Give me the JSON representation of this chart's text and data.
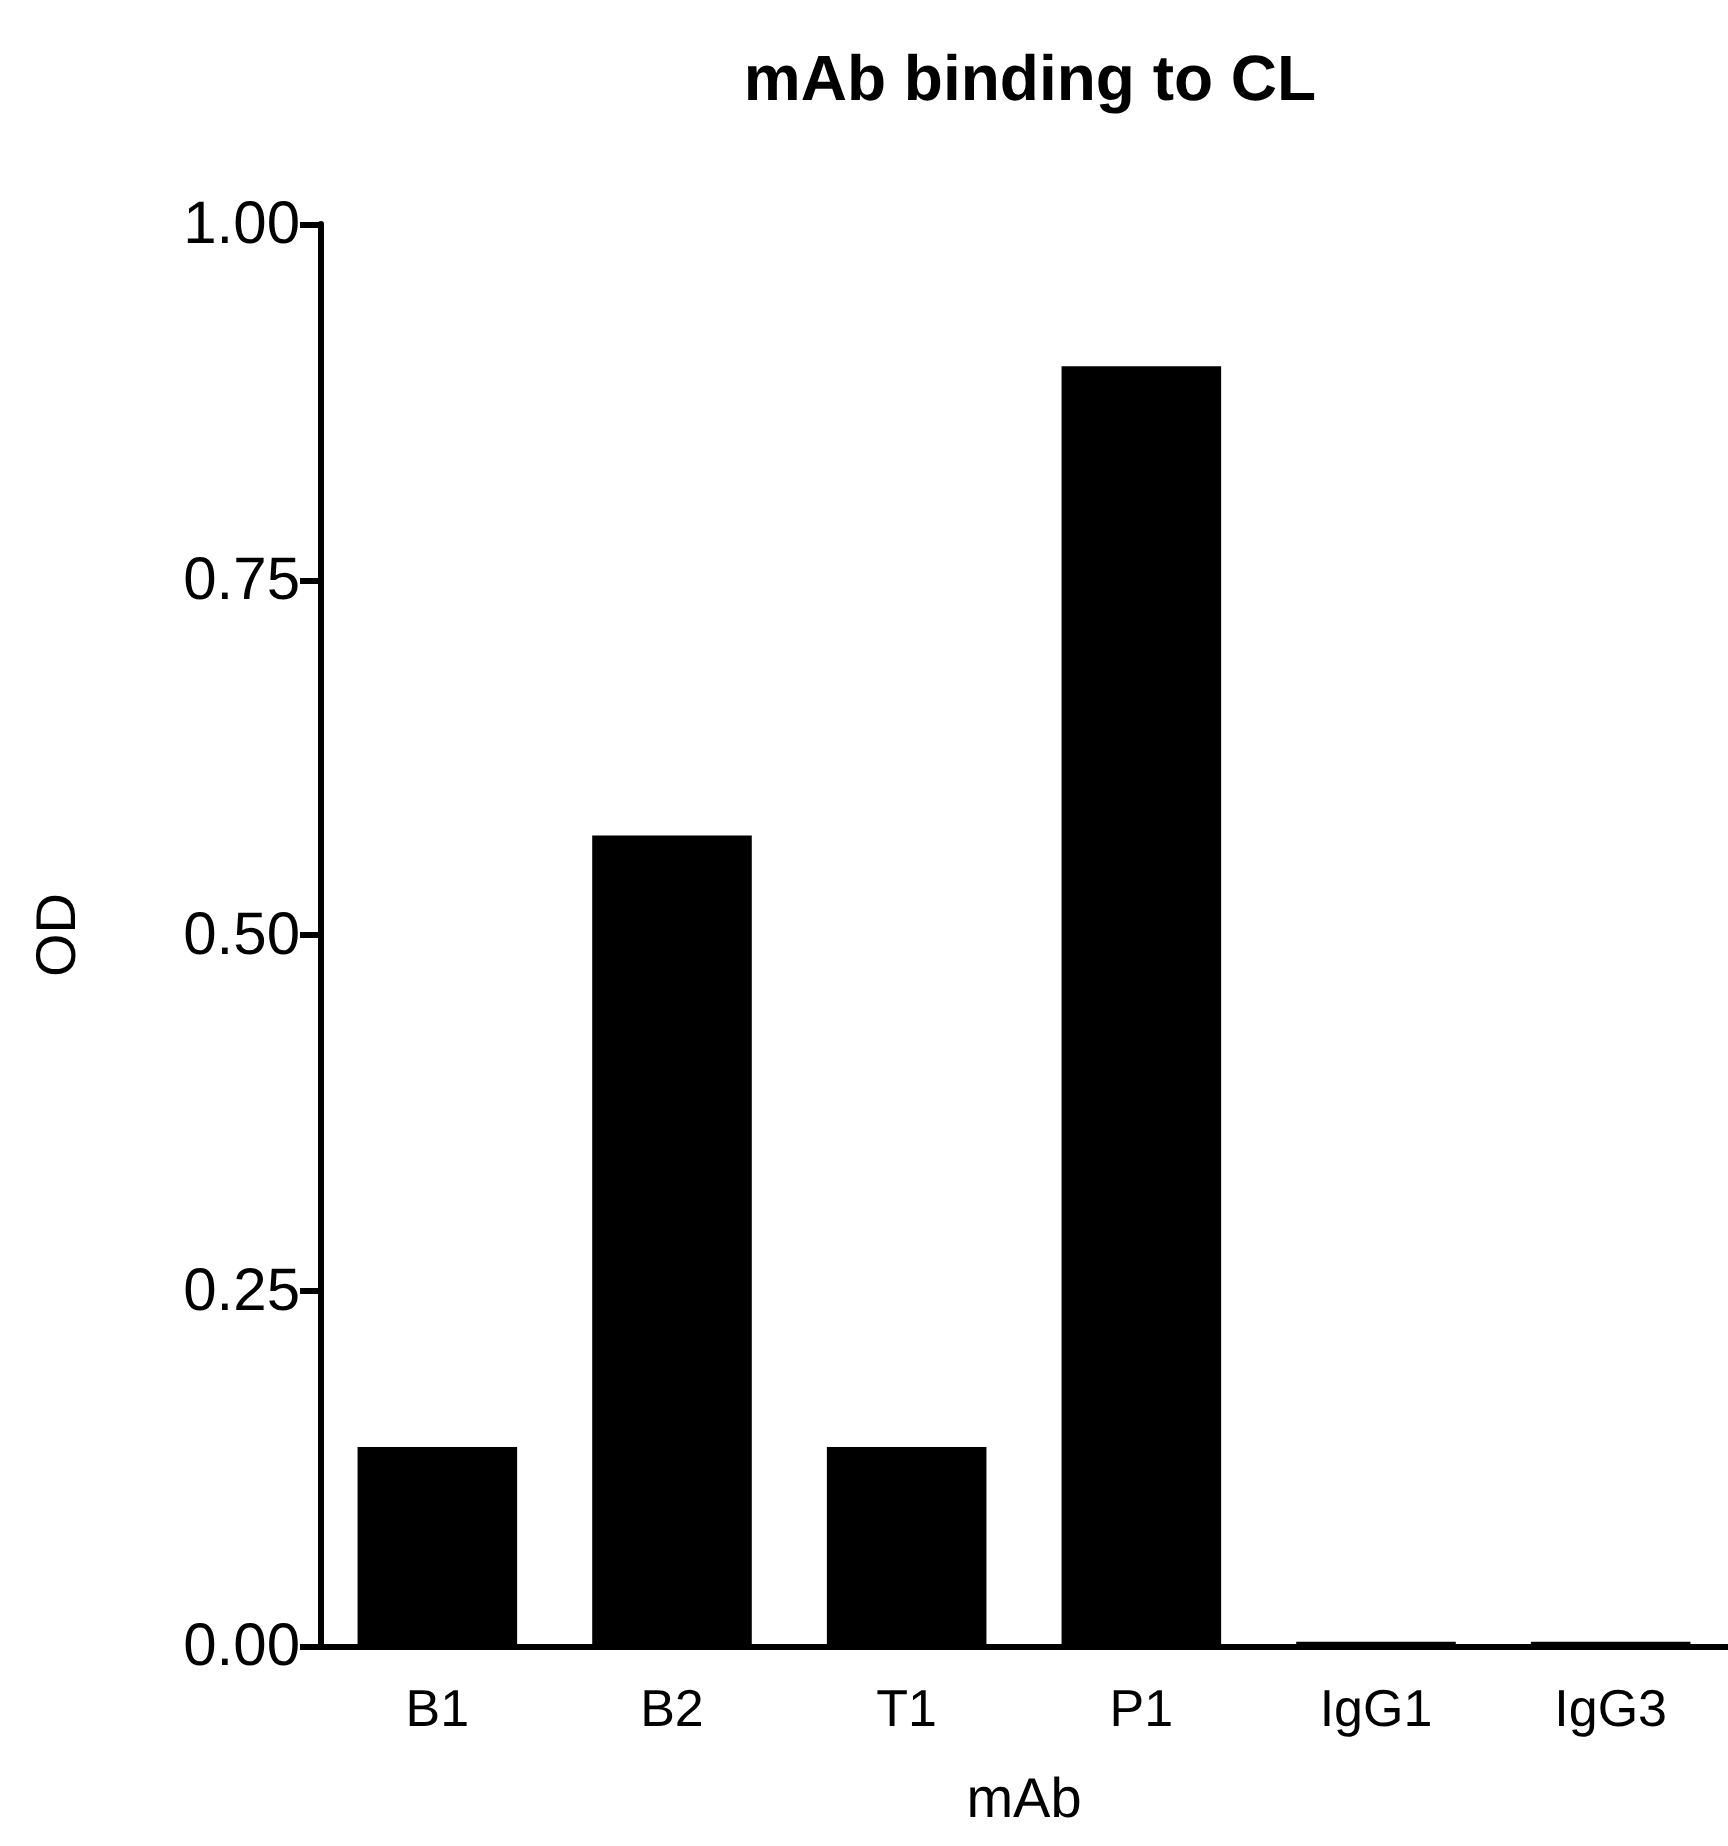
{
  "chart_data": {
    "type": "bar",
    "title": "mAb binding to CL",
    "xlabel": "mAb",
    "ylabel": "OD",
    "categories": [
      "B1",
      "B2",
      "T1",
      "P1",
      "IgG1",
      "IgG3"
    ],
    "values": [
      0.14,
      0.57,
      0.14,
      0.9,
      0.003,
      0.003
    ],
    "color": "#000000",
    "ylim": [
      0,
      1
    ],
    "yticks": [
      {
        "value": 0,
        "label": "0.00"
      },
      {
        "value": 0.25,
        "label": "0.25"
      },
      {
        "value": 0.5,
        "label": "0.50"
      },
      {
        "value": 0.75,
        "label": "0.75"
      },
      {
        "value": 1,
        "label": "1.00"
      }
    ],
    "grid": false
  }
}
